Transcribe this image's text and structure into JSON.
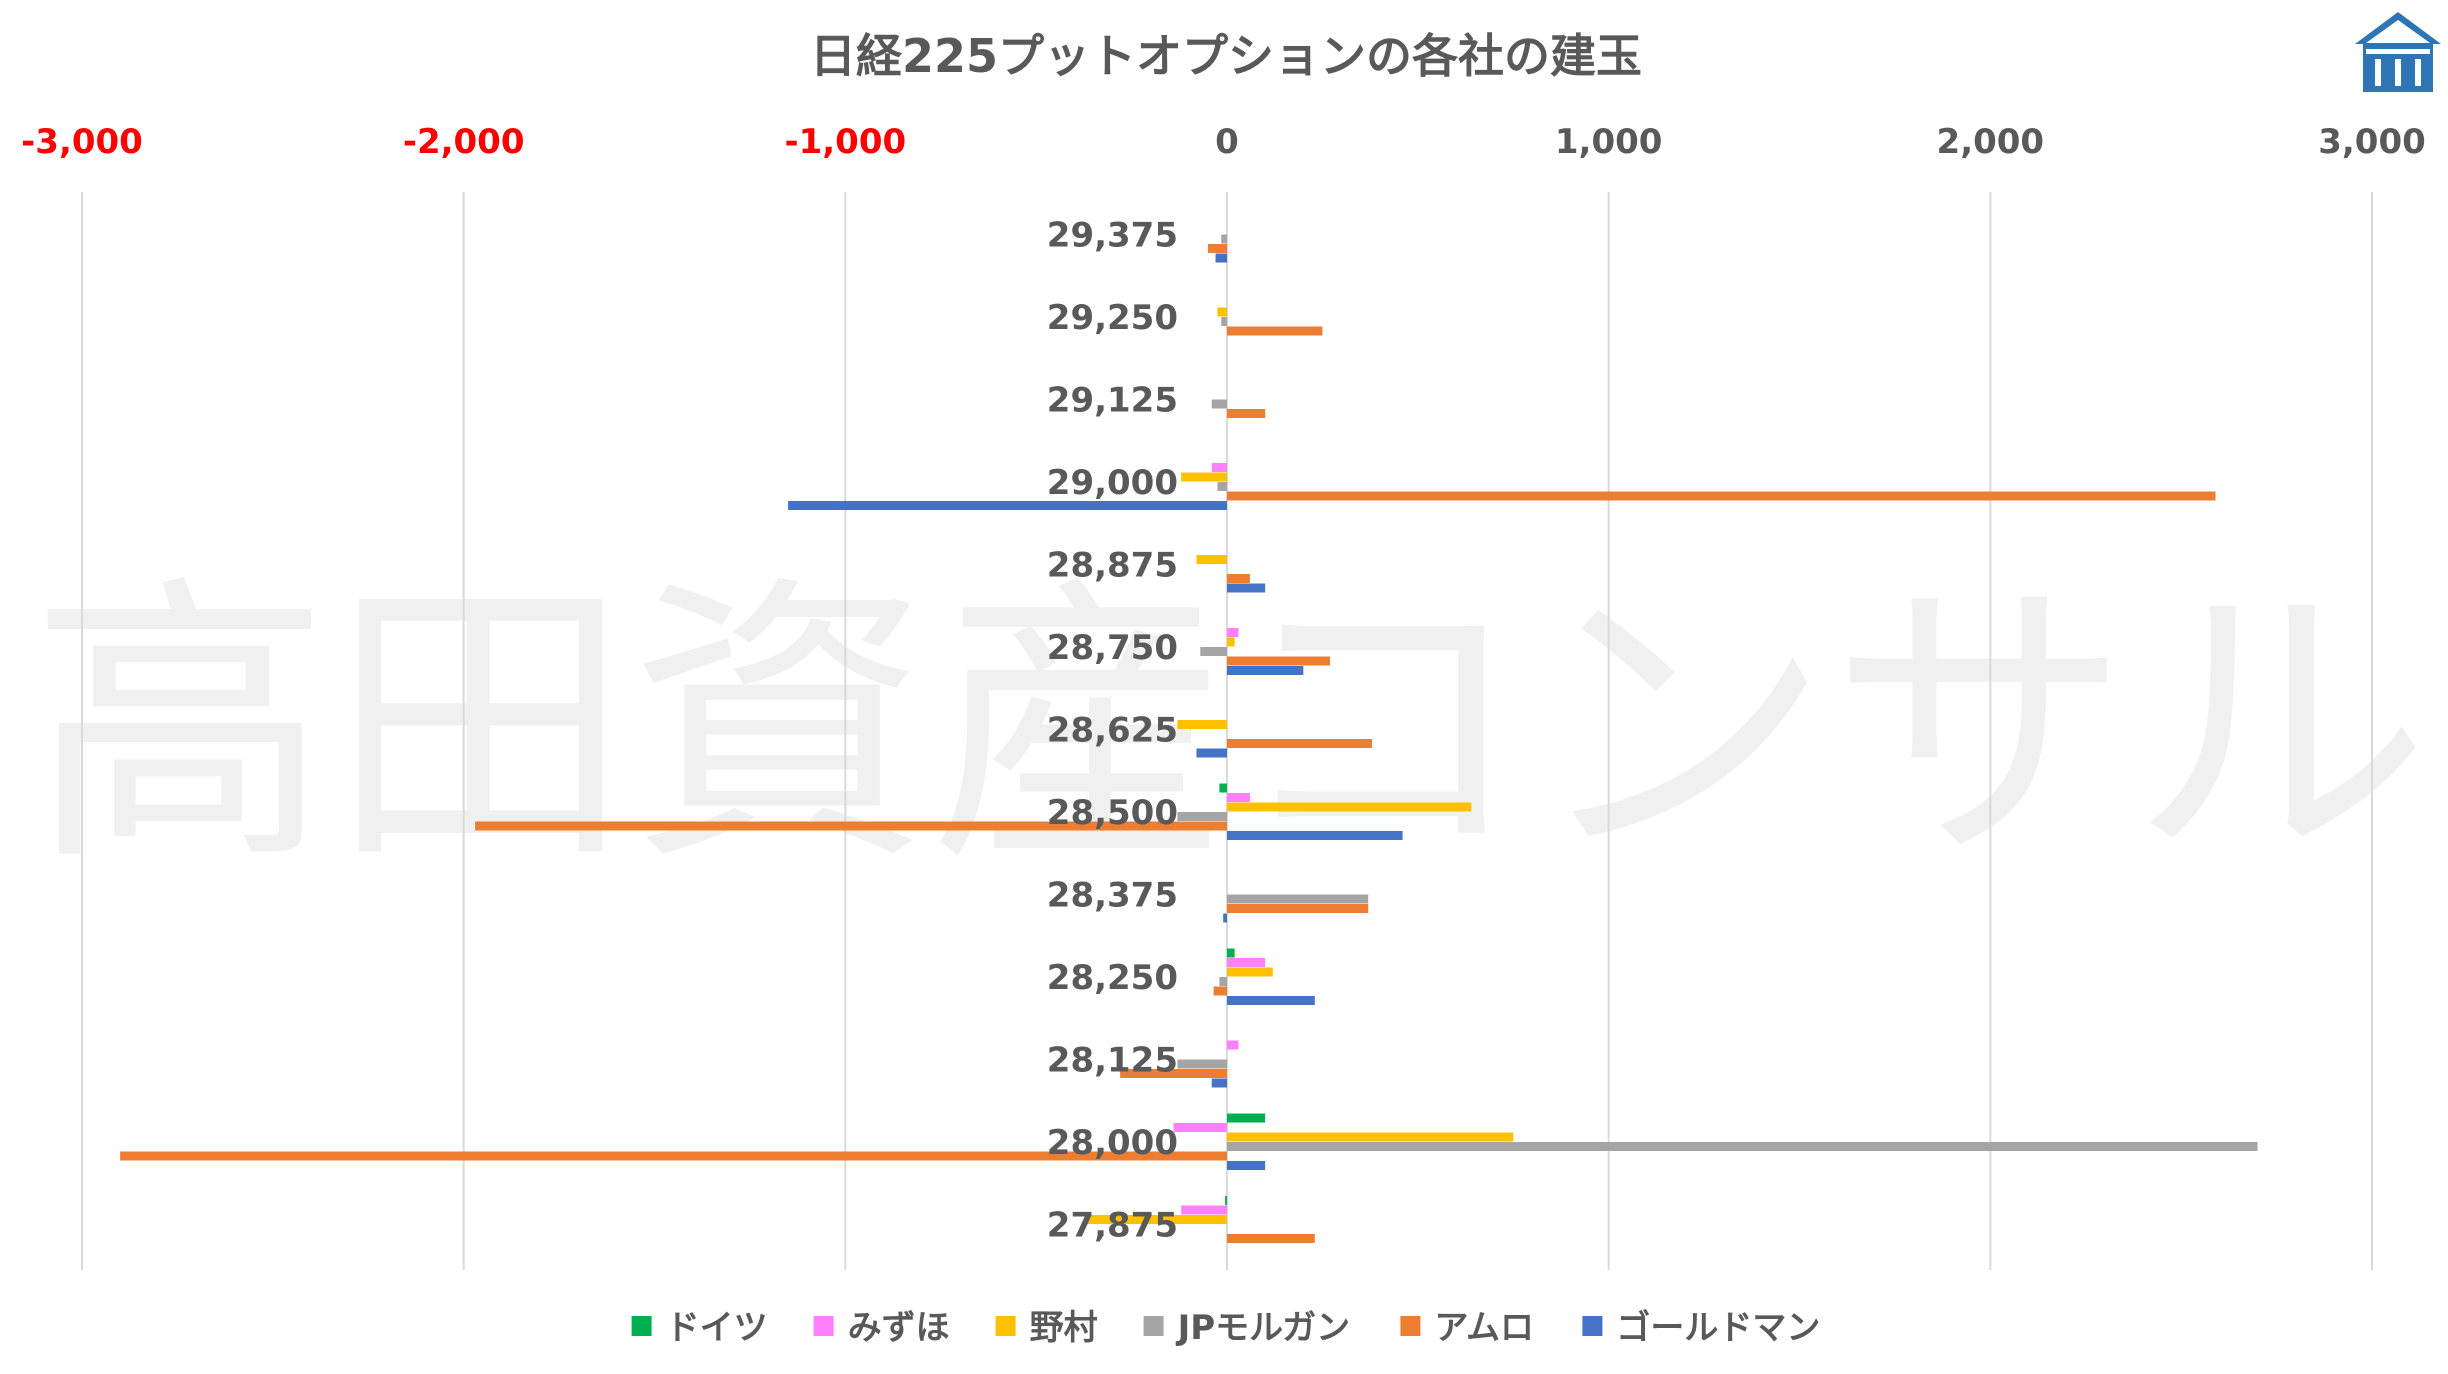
{
  "watermark": "高田資産コンサル",
  "logo": {
    "icon": "house-with-columns-logo-icon",
    "color": "#2e75b6"
  },
  "chart_data": {
    "type": "bar",
    "orientation": "horizontal",
    "title": "日経225プットオプションの各社の建玉",
    "xlim": [
      -3000,
      3000
    ],
    "x_ticks": [
      -3000,
      -2000,
      -1000,
      0,
      1000,
      2000,
      3000
    ],
    "x_tick_labels": [
      "-3,000",
      "-2,000",
      "-1,000",
      "0",
      "1,000",
      "2,000",
      "3,000"
    ],
    "x_axis_position": "top",
    "negative_tick_color": "#ff0000",
    "positive_tick_color": "#595959",
    "grid": "vertical",
    "legend_position": "bottom",
    "categories": [
      "29,375",
      "29,250",
      "29,125",
      "29,000",
      "28,875",
      "28,750",
      "28,625",
      "28,500",
      "28,375",
      "28,250",
      "28,125",
      "28,000",
      "27,875"
    ],
    "series": [
      {
        "name": "ドイツ",
        "color": "#00b050",
        "values": [
          0,
          0,
          0,
          0,
          0,
          0,
          0,
          -20,
          0,
          20,
          0,
          100,
          -5
        ]
      },
      {
        "name": "みずほ",
        "color": "#ff80ff",
        "values": [
          0,
          0,
          0,
          -40,
          0,
          30,
          0,
          60,
          0,
          100,
          30,
          -140,
          -120
        ]
      },
      {
        "name": "野村",
        "color": "#ffc000",
        "values": [
          0,
          -25,
          0,
          -120,
          -80,
          20,
          -130,
          640,
          0,
          120,
          0,
          750,
          -370
        ]
      },
      {
        "name": "JPモルガン",
        "color": "#a5a5a5",
        "values": [
          -15,
          -15,
          -40,
          -25,
          0,
          -70,
          0,
          -130,
          370,
          -20,
          -130,
          2700,
          0
        ]
      },
      {
        "name": "アムロ",
        "color": "#ed7d31",
        "values": [
          -50,
          250,
          100,
          2590,
          60,
          270,
          380,
          -1970,
          370,
          -35,
          -280,
          -2900,
          230
        ]
      },
      {
        "name": "ゴールドマン",
        "color": "#4472c4",
        "values": [
          -30,
          0,
          0,
          -1150,
          100,
          200,
          -80,
          460,
          -10,
          230,
          -40,
          100,
          0
        ]
      }
    ]
  }
}
